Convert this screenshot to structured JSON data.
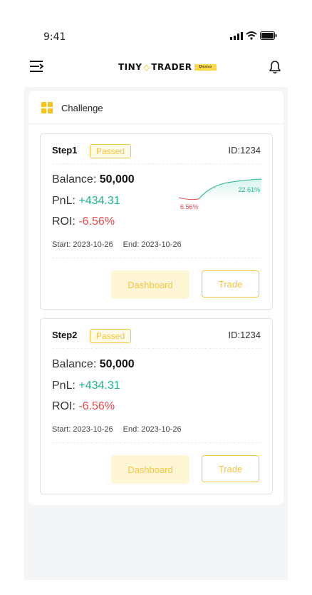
{
  "status_bar": {
    "time": "9:41"
  },
  "header": {
    "logo_left": "TINY",
    "logo_right": "TRADER",
    "logo_badge": "Demo"
  },
  "panel": {
    "title": "Challenge"
  },
  "cards": [
    {
      "step": "Step1",
      "status": "Passed",
      "id": "ID:1234",
      "balance_label": "Balance: ",
      "balance_value": "50,000",
      "pnl_label": "PnL: ",
      "pnl_value": "+434.31",
      "roi_label": "ROI: ",
      "roi_value": "-6.56%",
      "start": "Start: 2023-10-26",
      "end": "End: 2023-10-26",
      "dashboard_label": "Dashboard",
      "trade_label": "Trade",
      "chart": {
        "high_label": "22.61%",
        "low_label": "6.56%"
      }
    },
    {
      "step": "Step2",
      "status": "Passed",
      "id": "ID:1234",
      "balance_label": "Balance: ",
      "balance_value": "50,000",
      "pnl_label": "PnL: ",
      "pnl_value": "+434.31",
      "roi_label": "ROI: ",
      "roi_value": "-6.56%",
      "start": "Start: 2023-10-26",
      "end": "End: 2023-10-26",
      "dashboard_label": "Dashboard",
      "trade_label": "Trade"
    }
  ],
  "colors": {
    "accent": "#f5c542",
    "positive": "#1bb592",
    "negative": "#e5484d"
  }
}
